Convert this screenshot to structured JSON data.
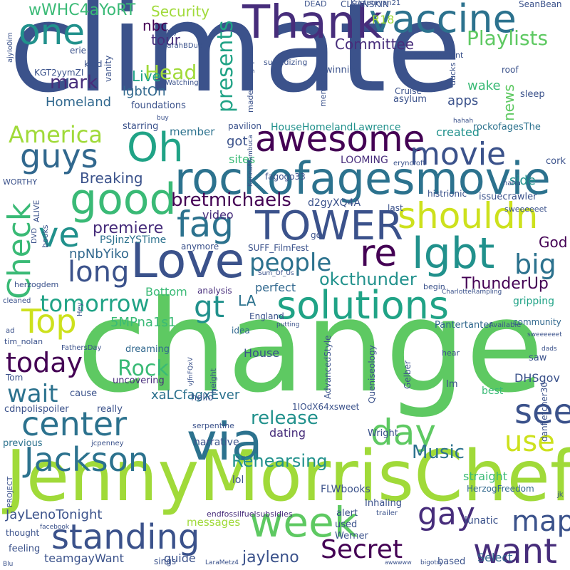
{
  "words": [
    {
      "text": "climate",
      "color": "#3b528b"
    },
    {
      "text": "change",
      "color": "#5ec962"
    },
    {
      "text": "JennyMorrisChef",
      "color": "#a0da39"
    },
    {
      "text": "Thank",
      "color": "#472d7b"
    },
    {
      "text": "vaccine",
      "color": "#2c728e"
    },
    {
      "text": "one",
      "color": "#21918c"
    },
    {
      "text": "rockofagesmovie",
      "color": "#2c728e"
    },
    {
      "text": "awesome",
      "color": "#440154"
    },
    {
      "text": "good",
      "color": "#3aba76"
    },
    {
      "text": "guys",
      "color": "#31688e"
    },
    {
      "text": "Oh",
      "color": "#20a386"
    },
    {
      "text": "movie",
      "color": "#3b528b"
    },
    {
      "text": "America",
      "color": "#a0da39"
    },
    {
      "text": "Love",
      "color": "#3b528b"
    },
    {
      "text": "TOWER",
      "color": "#3b528b"
    },
    {
      "text": "fag",
      "color": "#2c728e"
    },
    {
      "text": "shouldn",
      "color": "#cde11d"
    },
    {
      "text": "lgbt",
      "color": "#21918c"
    },
    {
      "text": "re",
      "color": "#440154"
    },
    {
      "text": "ve",
      "color": "#21918c"
    },
    {
      "text": "long",
      "color": "#3b528b"
    },
    {
      "text": "Check",
      "color": "#3aba76"
    },
    {
      "text": "people",
      "color": "#2c728e"
    },
    {
      "text": "big",
      "color": "#2c728e"
    },
    {
      "text": "solutions",
      "color": "#20a386"
    },
    {
      "text": "Top",
      "color": "#cde11d"
    },
    {
      "text": "tomorrow",
      "color": "#20a386"
    },
    {
      "text": "gt",
      "color": "#21918c"
    },
    {
      "text": "today",
      "color": "#440154"
    },
    {
      "text": "center",
      "color": "#2c728e"
    },
    {
      "text": "via",
      "color": "#2c728e"
    },
    {
      "text": "day",
      "color": "#5ec962"
    },
    {
      "text": "see",
      "color": "#3b528b"
    },
    {
      "text": "wait",
      "color": "#2c728e"
    },
    {
      "text": "Jackson",
      "color": "#2c728e"
    },
    {
      "text": "use",
      "color": "#cde11d"
    },
    {
      "text": "week",
      "color": "#5ec962"
    },
    {
      "text": "gay",
      "color": "#472d7b"
    },
    {
      "text": "map",
      "color": "#3b528b"
    },
    {
      "text": "standing",
      "color": "#3b528b"
    },
    {
      "text": "Secret",
      "color": "#440154"
    },
    {
      "text": "want",
      "color": "#472d7b"
    },
    {
      "text": "Rock",
      "color": "#3aba76"
    },
    {
      "text": "release",
      "color": "#21918c"
    },
    {
      "text": "Rehearsing",
      "color": "#21918c"
    },
    {
      "text": "Music",
      "color": "#2c728e"
    },
    {
      "text": "Head",
      "color": "#a0da39"
    },
    {
      "text": "mark",
      "color": "#472d7b"
    },
    {
      "text": "Live",
      "color": "#20a386"
    },
    {
      "text": "presents",
      "color": "#20a386"
    },
    {
      "text": "Playlists",
      "color": "#5ec962"
    },
    {
      "text": "Committee",
      "color": "#472d7b"
    },
    {
      "text": "Security",
      "color": "#a0da39"
    },
    {
      "text": "wWHC4aYoRT",
      "color": "#3aba76"
    },
    {
      "text": "nbc",
      "color": "#440154"
    },
    {
      "text": "tour",
      "color": "#472d7b"
    },
    {
      "text": "bretmichaels",
      "color": "#440154"
    },
    {
      "text": "Breaking",
      "color": "#3b528b"
    },
    {
      "text": "premiere",
      "color": "#472d7b"
    },
    {
      "text": "ThunderUp",
      "color": "#440154"
    },
    {
      "text": "okcthunder",
      "color": "#21918c"
    },
    {
      "text": "God",
      "color": "#440154"
    },
    {
      "text": "npNbYiko",
      "color": "#31688e"
    },
    {
      "text": "Homeland",
      "color": "#31688e"
    },
    {
      "text": "lgbtOn",
      "color": "#31688e"
    },
    {
      "text": "news",
      "color": "#5ec962"
    },
    {
      "text": "apps",
      "color": "#3b528b"
    },
    {
      "text": "wake",
      "color": "#3aba76"
    },
    {
      "text": "created",
      "color": "#21918c"
    },
    {
      "text": "side",
      "color": "#21918c"
    },
    {
      "text": "rockofagesThe",
      "color": "#2c728e"
    },
    {
      "text": "HouseHomelandLawrence",
      "color": "#21918c"
    },
    {
      "text": "member",
      "color": "#2c728e"
    },
    {
      "text": "got",
      "color": "#3b528b"
    },
    {
      "text": "sites",
      "color": "#3aba76"
    },
    {
      "text": "video",
      "color": "#472d7b"
    },
    {
      "text": "LOOMING",
      "color": "#472d7b"
    },
    {
      "text": "d2gyXQ4A",
      "color": "#3b528b"
    },
    {
      "text": "PSJinzYSTime",
      "color": "#2c728e"
    },
    {
      "text": "LA",
      "color": "#2c728e"
    },
    {
      "text": "5MPna1s1",
      "color": "#3aba76"
    },
    {
      "text": "Bottom",
      "color": "#3aba76"
    },
    {
      "text": "perfect",
      "color": "#31688e"
    },
    {
      "text": "House",
      "color": "#3b528b"
    },
    {
      "text": "xaLCfagxEver",
      "color": "#2c728e"
    },
    {
      "text": "dating",
      "color": "#472d7b"
    },
    {
      "text": "jayleno",
      "color": "#3b528b"
    },
    {
      "text": "JayLenoTonight",
      "color": "#3b528b"
    },
    {
      "text": "teamgayWant",
      "color": "#3b528b"
    },
    {
      "text": "guide",
      "color": "#3b528b"
    },
    {
      "text": "messages",
      "color": "#a0da39"
    },
    {
      "text": "narrative",
      "color": "#3b528b"
    },
    {
      "text": "endfossilfuelsubsidies",
      "color": "#472d7b"
    },
    {
      "text": "FLWbooks",
      "color": "#3b528b"
    },
    {
      "text": "straight",
      "color": "#3aba76"
    },
    {
      "text": "DHSgov",
      "color": "#3b528b"
    },
    {
      "text": "HerzogFreedom",
      "color": "#31688e"
    },
    {
      "text": "Select",
      "color": "#31688e"
    },
    {
      "text": "lunatic",
      "color": "#3b528b"
    },
    {
      "text": "Pantertanter",
      "color": "#31688e"
    },
    {
      "text": "gripping",
      "color": "#20a386"
    },
    {
      "text": "community",
      "color": "#31688e"
    },
    {
      "text": "best",
      "color": "#3aba76"
    },
    {
      "text": "saw",
      "color": "#3b528b"
    },
    {
      "text": "uncovering",
      "color": "#472d7b"
    },
    {
      "text": "dreaming",
      "color": "#31688e"
    },
    {
      "text": "really",
      "color": "#3b528b"
    },
    {
      "text": "cause",
      "color": "#3b528b"
    },
    {
      "text": "cdnpolispoiler",
      "color": "#3b528b"
    },
    {
      "text": "previous",
      "color": "#2c728e"
    },
    {
      "text": "thought",
      "color": "#3b528b"
    },
    {
      "text": "feeling",
      "color": "#3b528b"
    },
    {
      "text": "analysis",
      "color": "#472d7b"
    },
    {
      "text": "England",
      "color": "#3b528b"
    },
    {
      "text": "idea",
      "color": "#31688e"
    },
    {
      "text": "hello",
      "color": "#3b528b"
    },
    {
      "text": "lol",
      "color": "#3b528b"
    },
    {
      "text": "alert",
      "color": "#3b528b"
    },
    {
      "text": "Inhaling",
      "color": "#3b528b"
    },
    {
      "text": "used",
      "color": "#3b528b"
    },
    {
      "text": "Werner",
      "color": "#3b528b"
    },
    {
      "text": "sings",
      "color": "#3b528b"
    },
    {
      "text": "based",
      "color": "#3b528b"
    },
    {
      "text": "Wright",
      "color": "#3b528b"
    },
    {
      "text": "Im",
      "color": "#3b528b"
    },
    {
      "text": "hear",
      "color": "#3b528b"
    },
    {
      "text": "1IOdX64xsweet",
      "color": "#3b528b"
    },
    {
      "text": "CLEANSKIN",
      "color": "#3b528b"
    },
    {
      "text": "DEAD",
      "color": "#3b528b"
    },
    {
      "text": "R18",
      "color": "#a0da39"
    },
    {
      "text": "SeanBean",
      "color": "#3b528b"
    },
    {
      "text": "Kristenryan21",
      "color": "#3b528b"
    },
    {
      "text": "commitment",
      "color": "#3b528b"
    },
    {
      "text": "subsidizing",
      "color": "#3b528b"
    },
    {
      "text": "roof",
      "color": "#3b528b"
    },
    {
      "text": "sleep",
      "color": "#3b528b"
    },
    {
      "text": "asylum",
      "color": "#3b528b"
    },
    {
      "text": "winning",
      "color": "#3b528b"
    },
    {
      "text": "foundations",
      "color": "#3b528b"
    },
    {
      "text": "starring",
      "color": "#3b528b"
    },
    {
      "text": "pavilion",
      "color": "#3b528b"
    },
    {
      "text": "vanity",
      "color": "#3b528b"
    },
    {
      "text": "kind",
      "color": "#3b528b"
    },
    {
      "text": "erie",
      "color": "#3b528b"
    },
    {
      "text": "KGT2yymZI",
      "color": "#3b528b"
    },
    {
      "text": "SarahBDub",
      "color": "#3b528b"
    },
    {
      "text": "Ray",
      "color": "#3b528b"
    },
    {
      "text": "Watching",
      "color": "#3b528b"
    },
    {
      "text": "Cruise",
      "color": "#3b528b"
    },
    {
      "text": "hahah",
      "color": "#3b528b"
    },
    {
      "text": "buy",
      "color": "#3b528b"
    },
    {
      "text": "fagogo33",
      "color": "#3b528b"
    },
    {
      "text": "eryncroft",
      "color": "#3b528b"
    },
    {
      "text": "haha",
      "color": "#3b528b"
    },
    {
      "text": "cork",
      "color": "#3b528b"
    },
    {
      "text": "WORTHY",
      "color": "#3b528b"
    },
    {
      "text": "issuecrawler",
      "color": "#3b528b"
    },
    {
      "text": "histrionic",
      "color": "#3b528b"
    },
    {
      "text": "sweeeeeet",
      "color": "#3b528b"
    },
    {
      "text": "last",
      "color": "#3b528b"
    },
    {
      "text": "go",
      "color": "#3b528b"
    },
    {
      "text": "anymore",
      "color": "#3b528b"
    },
    {
      "text": "SUFF_FilmFest",
      "color": "#3b528b"
    },
    {
      "text": "Sum_Of_Us",
      "color": "#3b528b"
    },
    {
      "text": "begin",
      "color": "#3b528b"
    },
    {
      "text": "CharlotteRampling",
      "color": "#3b528b"
    },
    {
      "text": "herzogdem",
      "color": "#3b528b"
    },
    {
      "text": "cleaned",
      "color": "#3b528b"
    },
    {
      "text": "putting",
      "color": "#3b528b"
    },
    {
      "text": "Available",
      "color": "#3b528b"
    },
    {
      "text": "sweeeeeet",
      "color": "#3b528b"
    },
    {
      "text": "ad",
      "color": "#3b528b"
    },
    {
      "text": "tim_nolan",
      "color": "#3b528b"
    },
    {
      "text": "FathersDay",
      "color": "#3b528b"
    },
    {
      "text": "Tom",
      "color": "#3b528b"
    },
    {
      "text": "serpentine",
      "color": "#3b528b"
    },
    {
      "text": "jcpenney",
      "color": "#3b528b"
    },
    {
      "text": "trailer",
      "color": "#3b528b"
    },
    {
      "text": "facebook",
      "color": "#3b528b"
    },
    {
      "text": "LaraMetz4",
      "color": "#3b528b"
    },
    {
      "text": "awwwww",
      "color": "#3b528b"
    },
    {
      "text": "bigotry",
      "color": "#3b528b"
    },
    {
      "text": "Blu",
      "color": "#3b528b"
    },
    {
      "text": "jk",
      "color": "#3b528b"
    },
    {
      "text": "dads",
      "color": "#3b528b"
    },
    {
      "text": "books",
      "color": "#3b528b"
    },
    {
      "text": "ALIVE",
      "color": "#3b528b"
    },
    {
      "text": "DVD",
      "color": "#3b528b"
    },
    {
      "text": "Hey",
      "color": "#3b528b"
    },
    {
      "text": "PROJECT",
      "color": "#3b528b"
    },
    {
      "text": "ajyIo0im",
      "color": "#3b528b"
    },
    {
      "text": "madewithgephi",
      "color": "#3b528b"
    },
    {
      "text": "memorial",
      "color": "#3b528b"
    },
    {
      "text": "ducks",
      "color": "#3b528b"
    },
    {
      "text": "KarinaMambuca",
      "color": "#3b528b"
    },
    {
      "text": "AdvancedStyle",
      "color": "#3b528b"
    },
    {
      "text": "Queniseology",
      "color": "#3b528b"
    },
    {
      "text": "Gelber",
      "color": "#3b528b"
    },
    {
      "text": "danfletcher30",
      "color": "#3b528b"
    },
    {
      "text": "height",
      "color": "#3b528b"
    },
    {
      "text": "vJfnFQxV",
      "color": "#3b528b"
    }
  ]
}
